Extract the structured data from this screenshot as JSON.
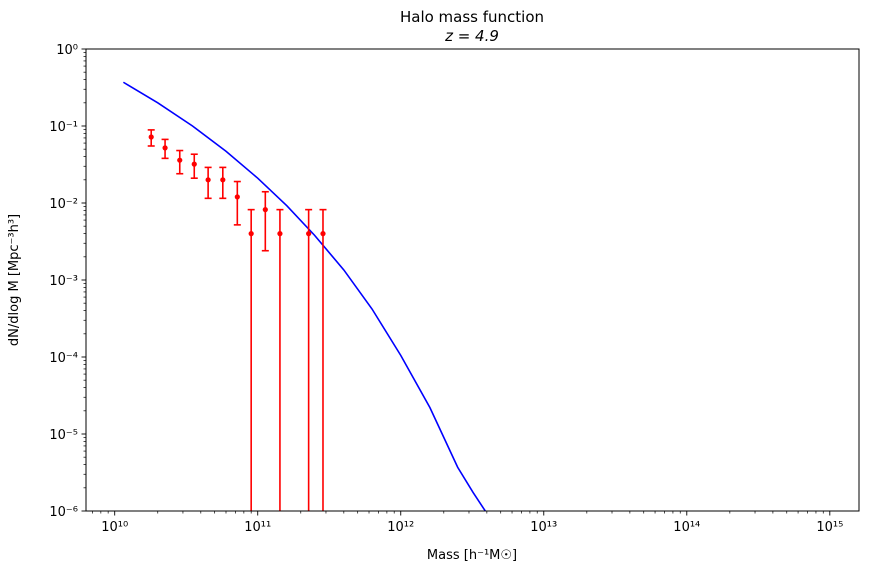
{
  "chart_data": {
    "type": "scatter",
    "title": "Halo mass function",
    "subtitle": "z = 4.9",
    "xlabel": "Mass [h⁻¹M☉]",
    "ylabel": "dN/dlog M [Mpc⁻³h³]",
    "xscale": "log",
    "yscale": "log",
    "xlim": [
      6300000000.0,
      1600000000000000.0
    ],
    "ylim": [
      1e-06,
      1
    ],
    "grid": false,
    "x_tick_labels": [
      "10¹⁰",
      "10¹¹",
      "10¹²",
      "10¹³",
      "10¹⁴",
      "10¹⁵"
    ],
    "y_tick_labels": [
      "10⁻⁶",
      "10⁻⁵",
      "10⁻⁴",
      "10⁻³",
      "10⁻²",
      "10⁻¹",
      "10⁰"
    ],
    "series": [
      {
        "kind": "line",
        "color": "#0000ff",
        "x": [
          11500000000.0,
          20000000000.0,
          35000000000.0,
          60000000000.0,
          100000000000.0,
          160000000000.0,
          250000000000.0,
          400000000000.0,
          630000000000.0,
          1000000000000.0,
          1600000000000.0,
          2500000000000.0,
          3200000000000.0,
          3900000000000.0
        ],
        "y": [
          0.37,
          0.2,
          0.1,
          0.047,
          0.021,
          0.0092,
          0.0038,
          0.00135,
          0.00042,
          0.000105,
          2.2e-05,
          3.7e-06,
          1.75e-06,
          1e-06
        ]
      },
      {
        "kind": "errorbar",
        "color": "#ff0000",
        "points": [
          {
            "x": 18000000000.0,
            "y": 0.072,
            "ylo": 0.055,
            "yhi": 0.089
          },
          {
            "x": 22500000000.0,
            "y": 0.052,
            "ylo": 0.038,
            "yhi": 0.067
          },
          {
            "x": 28500000000.0,
            "y": 0.036,
            "ylo": 0.024,
            "yhi": 0.048
          },
          {
            "x": 36000000000.0,
            "y": 0.032,
            "ylo": 0.021,
            "yhi": 0.043
          },
          {
            "x": 45000000000.0,
            "y": 0.02,
            "ylo": 0.0115,
            "yhi": 0.029
          },
          {
            "x": 57000000000.0,
            "y": 0.02,
            "ylo": 0.0115,
            "yhi": 0.029
          },
          {
            "x": 72000000000.0,
            "y": 0.012,
            "ylo": 0.0052,
            "yhi": 0.019
          },
          {
            "x": 90000000000.0,
            "y": 0.004,
            "ylo": 1e-07,
            "yhi": 0.0082
          },
          {
            "x": 113000000000.0,
            "y": 0.0082,
            "ylo": 0.0024,
            "yhi": 0.014
          },
          {
            "x": 143000000000.0,
            "y": 0.004,
            "ylo": 1e-07,
            "yhi": 0.0082
          },
          {
            "x": 227000000000.0,
            "y": 0.004,
            "ylo": 1e-07,
            "yhi": 0.0082
          },
          {
            "x": 286000000000.0,
            "y": 0.004,
            "ylo": 1e-07,
            "yhi": 0.0082
          }
        ]
      }
    ]
  }
}
